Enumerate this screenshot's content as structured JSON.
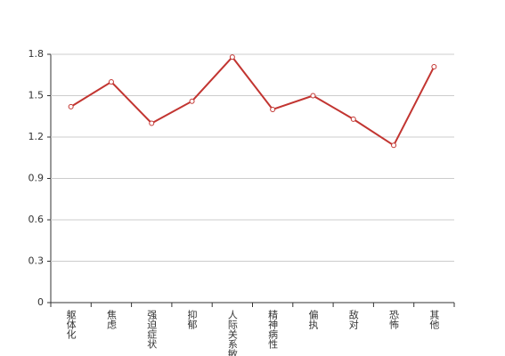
{
  "chart_data": {
    "type": "line",
    "categories": [
      "躯体化",
      "焦虑",
      "强迫症状",
      "抑郁",
      "人际关系敏感",
      "精神病性",
      "偏执",
      "敌对",
      "恐怖",
      "其他"
    ],
    "series": [
      {
        "color": "#c23531",
        "values": [
          1.42,
          1.6,
          1.3,
          1.46,
          1.78,
          1.4,
          1.5,
          1.33,
          1.14,
          1.71
        ]
      }
    ],
    "ylim": [
      0,
      1.8
    ],
    "yticks": [
      0,
      0.3,
      0.6,
      0.9,
      1.2,
      1.5,
      1.8
    ],
    "grid": true
  }
}
